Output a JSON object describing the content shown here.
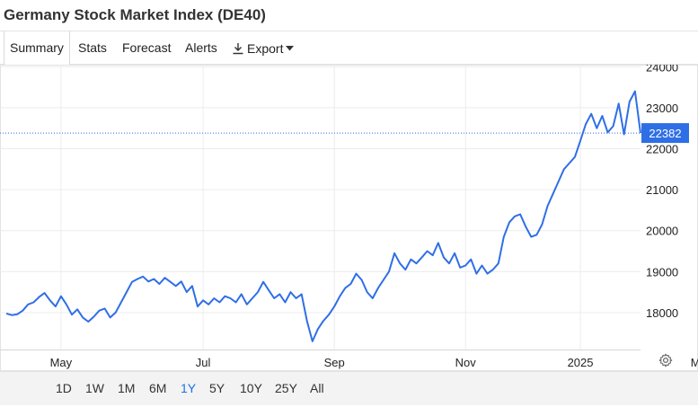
{
  "page": {
    "title": "Germany Stock Market Index (DE40)"
  },
  "tabs": [
    {
      "label": "Summary",
      "active": true
    },
    {
      "label": "Stats",
      "active": false
    },
    {
      "label": "Forecast",
      "active": false
    },
    {
      "label": "Alerts",
      "active": false
    },
    {
      "label": "Export",
      "active": false,
      "icon": "download-icon",
      "has_dropdown": true
    }
  ],
  "range_buttons": [
    {
      "label": "1D",
      "active": false
    },
    {
      "label": "1W",
      "active": false
    },
    {
      "label": "1M",
      "active": false
    },
    {
      "label": "6M",
      "active": false
    },
    {
      "label": "1Y",
      "active": true
    },
    {
      "label": "5Y",
      "active": false
    },
    {
      "label": "10Y",
      "active": false
    },
    {
      "label": "25Y",
      "active": false
    },
    {
      "label": "All",
      "active": false
    }
  ],
  "colors": {
    "line": "#2f6fe5",
    "accent": "#1a73e8",
    "price_badge_bg": "#2f6fe5",
    "grid": "#ececec"
  },
  "chart_data": {
    "type": "line",
    "current_value_label": "22382",
    "current_value": 22382,
    "ylim": [
      17100,
      24050
    ],
    "y_ticks": [
      18000,
      19000,
      20000,
      21000,
      22000,
      23000,
      24000
    ],
    "y_tick_labels": [
      "18000",
      "19000",
      "20000",
      "21000",
      "22000",
      "23000",
      "24000"
    ],
    "x_tick_labels": [
      "May",
      "Jul",
      "Sep",
      "Nov",
      "2025",
      "Mar"
    ],
    "x_tick_positions_index": [
      10,
      36,
      60,
      84,
      105,
      127
    ],
    "grid": true,
    "series": [
      {
        "values": [
          17980,
          17940,
          17960,
          18050,
          18200,
          18250,
          18380,
          18480,
          18300,
          18150,
          18400,
          18200,
          17950,
          18080,
          17880,
          17780,
          17900,
          18050,
          18100,
          17880,
          18000,
          18250,
          18500,
          18750,
          18820,
          18880,
          18760,
          18820,
          18700,
          18850,
          18750,
          18650,
          18760,
          18500,
          18650,
          18150,
          18300,
          18200,
          18350,
          18250,
          18400,
          18350,
          18250,
          18450,
          18200,
          18350,
          18500,
          18750,
          18550,
          18350,
          18450,
          18250,
          18500,
          18350,
          18450,
          17800,
          17300,
          17600,
          17800,
          17950,
          18150,
          18400,
          18600,
          18700,
          18950,
          18800,
          18500,
          18350,
          18600,
          18800,
          19000,
          19450,
          19200,
          19050,
          19300,
          19200,
          19350,
          19500,
          19400,
          19700,
          19350,
          19200,
          19450,
          19100,
          19150,
          19300,
          18950,
          19150,
          18950,
          19050,
          19200,
          19850,
          20200,
          20350,
          20400,
          20100,
          19850,
          19900,
          20150,
          20600,
          20900,
          21200,
          21500,
          21650,
          21800,
          22200,
          22600,
          22850,
          22500,
          22800,
          22400,
          22550,
          23100,
          22350,
          23150,
          23400,
          22382
        ],
        "color": "#2f6fe5"
      }
    ]
  }
}
